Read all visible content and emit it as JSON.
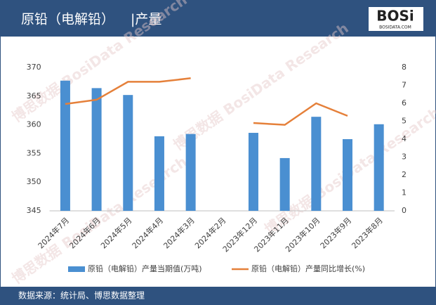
{
  "chart_data": {
    "type": "bar-line",
    "title": "原铅（电解铅）",
    "subtitle": "|产量",
    "logo": {
      "text": "BOSi",
      "url": "BOSIDATA.COM"
    },
    "source": "数据来源：统计局、博思数据整理",
    "watermark": "博思数据 BosiData Research",
    "categories": [
      "2024年7月",
      "2024年6月",
      "2024年5月",
      "2024年4月",
      "2024年3月",
      "2024年2月",
      "2023年12月",
      "2023年11月",
      "2023年10月",
      "2023年9月",
      "2023年8月"
    ],
    "series": [
      {
        "name": "原铅（电解铅）产量当期值(万吨)",
        "type": "bar",
        "color": "#4a8fd1",
        "values": [
          367.7,
          366.4,
          365.2,
          358.0,
          358.4,
          null,
          358.6,
          354.2,
          361.4,
          357.5,
          360.1
        ]
      },
      {
        "name": "原铅（电解铅）产量同比增长(%)",
        "type": "line",
        "axis": "y2",
        "color": "#e5803a",
        "values": [
          5.96,
          6.2,
          7.2,
          7.2,
          7.4,
          null,
          4.9,
          4.8,
          6.0,
          5.3,
          null
        ]
      }
    ],
    "ylim": [
      345,
      370
    ],
    "yticks": [
      345,
      350,
      355,
      360,
      365,
      370
    ],
    "y2lim": [
      0,
      8
    ],
    "y2ticks": [
      0,
      1,
      2,
      3,
      4,
      5,
      6,
      7,
      8
    ],
    "grid": false
  }
}
